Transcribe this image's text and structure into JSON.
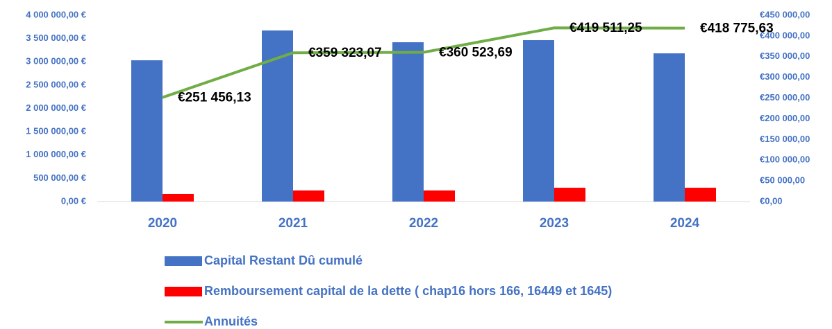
{
  "chart_data": {
    "type": "bar",
    "categories": [
      "2020",
      "2021",
      "2022",
      "2023",
      "2024"
    ],
    "series": [
      {
        "name": "Capital Restant Dû cumulé",
        "color": "#4472c4",
        "type": "bar",
        "values": [
          3033000,
          3673000,
          3420000,
          3465000,
          3182000
        ]
      },
      {
        "name": "Remboursement capital de la dette ( chap16 hors 166, 16449 et 1645)",
        "color": "#ff0000",
        "type": "bar",
        "values": [
          164000,
          238000,
          238000,
          297000,
          297000
        ]
      },
      {
        "name": "Annuités",
        "color": "#70ad47",
        "type": "line",
        "axis": "y2",
        "values": [
          251456.13,
          359323.07,
          360523.69,
          419511.25,
          418775.63
        ],
        "value_labels": [
          "€251 456,13",
          "€359 323,07",
          "€360 523,69",
          "€419 511,25",
          "€418 775,63"
        ]
      }
    ],
    "ylim": [
      0,
      4000000
    ],
    "yticks": [
      {
        "value": 0,
        "label": "0,00 €"
      },
      {
        "value": 500000,
        "label": "500 000,00 €"
      },
      {
        "value": 1000000,
        "label": "1 000 000,00 €"
      },
      {
        "value": 1500000,
        "label": "1 500 000,00 €"
      },
      {
        "value": 2000000,
        "label": "2 000 000,00 €"
      },
      {
        "value": 2500000,
        "label": "2 500 000,00 €"
      },
      {
        "value": 3000000,
        "label": "3 000 000,00 €"
      },
      {
        "value": 3500000,
        "label": "3 500 000,00 €"
      },
      {
        "value": 4000000,
        "label": "4 000 000,00 €"
      }
    ],
    "y2lim": [
      0,
      450000
    ],
    "y2ticks": [
      {
        "value": 0,
        "label": "€0,00"
      },
      {
        "value": 50000,
        "label": "€50 000,00"
      },
      {
        "value": 100000,
        "label": "€100 000,00"
      },
      {
        "value": 150000,
        "label": "€150 000,00"
      },
      {
        "value": 200000,
        "label": "€200 000,00"
      },
      {
        "value": 250000,
        "label": "€250 000,00"
      },
      {
        "value": 300000,
        "label": "€300 000,00"
      },
      {
        "value": 350000,
        "label": "€350 000,00"
      },
      {
        "value": 400000,
        "label": "€400 000,00"
      },
      {
        "value": 450000,
        "label": "€450 000,00"
      }
    ],
    "grid": false,
    "legend": "bottom"
  }
}
